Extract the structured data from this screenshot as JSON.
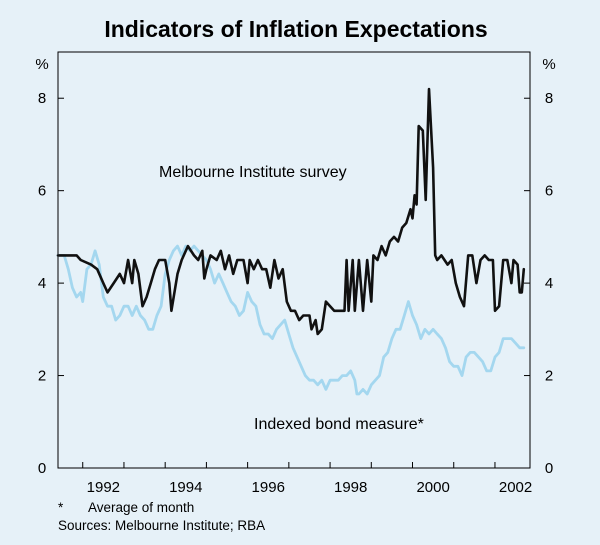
{
  "chart_data": {
    "type": "line",
    "title": "Indicators of Inflation Expectations",
    "ylabel_left": "%",
    "ylabel_right": "%",
    "ylim": [
      0,
      9
    ],
    "yticks": [
      0,
      2,
      4,
      6,
      8
    ],
    "xlim": [
      1991.4,
      2002.85
    ],
    "xticks": [
      1992,
      1994,
      1996,
      1998,
      2000,
      2002
    ],
    "series": [
      {
        "name": "Melbourne Institute survey",
        "color": "#111111",
        "points": [
          [
            1991.4,
            4.6
          ],
          [
            1991.5,
            4.6
          ],
          [
            1991.85,
            4.6
          ],
          [
            1991.95,
            4.5
          ],
          [
            1992.2,
            4.4
          ],
          [
            1992.35,
            4.3
          ],
          [
            1992.5,
            4.0
          ],
          [
            1992.6,
            3.8
          ],
          [
            1992.75,
            4.0
          ],
          [
            1992.9,
            4.2
          ],
          [
            1993.0,
            4.0
          ],
          [
            1993.1,
            4.5
          ],
          [
            1993.2,
            4.0
          ],
          [
            1993.25,
            4.5
          ],
          [
            1993.35,
            4.2
          ],
          [
            1993.45,
            3.5
          ],
          [
            1993.55,
            3.7
          ],
          [
            1993.65,
            4.0
          ],
          [
            1993.75,
            4.3
          ],
          [
            1993.85,
            4.5
          ],
          [
            1994.0,
            4.5
          ],
          [
            1994.1,
            4.0
          ],
          [
            1994.15,
            3.4
          ],
          [
            1994.3,
            4.2
          ],
          [
            1994.4,
            4.5
          ],
          [
            1994.55,
            4.8
          ],
          [
            1994.7,
            4.6
          ],
          [
            1994.8,
            4.5
          ],
          [
            1994.9,
            4.7
          ],
          [
            1994.95,
            4.1
          ],
          [
            1995.0,
            4.3
          ],
          [
            1995.1,
            4.6
          ],
          [
            1995.25,
            4.5
          ],
          [
            1995.35,
            4.7
          ],
          [
            1995.45,
            4.3
          ],
          [
            1995.55,
            4.6
          ],
          [
            1995.65,
            4.2
          ],
          [
            1995.75,
            4.5
          ],
          [
            1995.9,
            4.5
          ],
          [
            1996.0,
            4.0
          ],
          [
            1996.05,
            4.5
          ],
          [
            1996.15,
            4.3
          ],
          [
            1996.25,
            4.5
          ],
          [
            1996.35,
            4.3
          ],
          [
            1996.45,
            4.3
          ],
          [
            1996.55,
            3.9
          ],
          [
            1996.65,
            4.5
          ],
          [
            1996.75,
            4.1
          ],
          [
            1996.85,
            4.3
          ],
          [
            1996.95,
            3.6
          ],
          [
            1997.05,
            3.4
          ],
          [
            1997.15,
            3.4
          ],
          [
            1997.25,
            3.2
          ],
          [
            1997.35,
            3.3
          ],
          [
            1997.5,
            3.3
          ],
          [
            1997.55,
            3.0
          ],
          [
            1997.65,
            3.2
          ],
          [
            1997.7,
            2.9
          ],
          [
            1997.8,
            3.0
          ],
          [
            1997.9,
            3.6
          ],
          [
            1998.0,
            3.5
          ],
          [
            1998.1,
            3.4
          ],
          [
            1998.35,
            3.4
          ],
          [
            1998.4,
            4.5
          ],
          [
            1998.45,
            3.4
          ],
          [
            1998.55,
            4.5
          ],
          [
            1998.6,
            3.4
          ],
          [
            1998.7,
            4.5
          ],
          [
            1998.8,
            3.4
          ],
          [
            1998.9,
            4.5
          ],
          [
            1999.0,
            3.6
          ],
          [
            1999.05,
            4.6
          ],
          [
            1999.15,
            4.5
          ],
          [
            1999.25,
            4.8
          ],
          [
            1999.35,
            4.6
          ],
          [
            1999.45,
            4.9
          ],
          [
            1999.55,
            5.0
          ],
          [
            1999.65,
            4.9
          ],
          [
            1999.75,
            5.2
          ],
          [
            1999.85,
            5.3
          ],
          [
            1999.95,
            5.6
          ],
          [
            2000.0,
            5.4
          ],
          [
            2000.05,
            5.9
          ],
          [
            2000.1,
            5.7
          ],
          [
            2000.15,
            7.4
          ],
          [
            2000.25,
            7.3
          ],
          [
            2000.32,
            5.8
          ],
          [
            2000.4,
            8.2
          ],
          [
            2000.5,
            6.5
          ],
          [
            2000.55,
            4.6
          ],
          [
            2000.6,
            4.5
          ],
          [
            2000.7,
            4.6
          ],
          [
            2000.85,
            4.4
          ],
          [
            2000.95,
            4.5
          ],
          [
            2001.05,
            4.0
          ],
          [
            2001.15,
            3.7
          ],
          [
            2001.25,
            3.5
          ],
          [
            2001.35,
            4.6
          ],
          [
            2001.45,
            4.6
          ],
          [
            2001.55,
            4.0
          ],
          [
            2001.65,
            4.5
          ],
          [
            2001.75,
            4.6
          ],
          [
            2001.85,
            4.5
          ],
          [
            2001.95,
            4.5
          ],
          [
            2002.0,
            3.4
          ],
          [
            2002.1,
            3.5
          ],
          [
            2002.2,
            4.5
          ],
          [
            2002.3,
            4.5
          ],
          [
            2002.4,
            4.0
          ],
          [
            2002.45,
            4.5
          ],
          [
            2002.55,
            4.4
          ],
          [
            2002.6,
            3.8
          ],
          [
            2002.65,
            3.8
          ],
          [
            2002.7,
            4.3
          ]
        ]
      },
      {
        "name": "Indexed bond measure*",
        "color": "#a4d7ef",
        "points": [
          [
            1991.4,
            4.6
          ],
          [
            1991.55,
            4.6
          ],
          [
            1991.65,
            4.3
          ],
          [
            1991.75,
            3.9
          ],
          [
            1991.85,
            3.7
          ],
          [
            1991.95,
            3.8
          ],
          [
            1992.0,
            3.6
          ],
          [
            1992.1,
            4.3
          ],
          [
            1992.2,
            4.4
          ],
          [
            1992.3,
            4.7
          ],
          [
            1992.4,
            4.4
          ],
          [
            1992.5,
            3.7
          ],
          [
            1992.6,
            3.5
          ],
          [
            1992.7,
            3.5
          ],
          [
            1992.8,
            3.2
          ],
          [
            1992.9,
            3.3
          ],
          [
            1993.0,
            3.5
          ],
          [
            1993.1,
            3.5
          ],
          [
            1993.2,
            3.3
          ],
          [
            1993.3,
            3.5
          ],
          [
            1993.4,
            3.3
          ],
          [
            1993.5,
            3.2
          ],
          [
            1993.6,
            3.0
          ],
          [
            1993.7,
            3.0
          ],
          [
            1993.8,
            3.3
          ],
          [
            1993.9,
            3.5
          ],
          [
            1994.0,
            4.2
          ],
          [
            1994.1,
            4.5
          ],
          [
            1994.2,
            4.7
          ],
          [
            1994.3,
            4.8
          ],
          [
            1994.4,
            4.6
          ],
          [
            1994.5,
            4.8
          ],
          [
            1994.6,
            4.7
          ],
          [
            1994.7,
            4.8
          ],
          [
            1994.8,
            4.7
          ],
          [
            1994.9,
            4.6
          ],
          [
            1995.0,
            4.5
          ],
          [
            1995.1,
            4.3
          ],
          [
            1995.2,
            4.0
          ],
          [
            1995.3,
            4.2
          ],
          [
            1995.4,
            4.0
          ],
          [
            1995.5,
            3.8
          ],
          [
            1995.6,
            3.6
          ],
          [
            1995.7,
            3.5
          ],
          [
            1995.8,
            3.3
          ],
          [
            1995.9,
            3.4
          ],
          [
            1996.0,
            3.8
          ],
          [
            1996.1,
            3.6
          ],
          [
            1996.2,
            3.5
          ],
          [
            1996.3,
            3.1
          ],
          [
            1996.4,
            2.9
          ],
          [
            1996.5,
            2.9
          ],
          [
            1996.6,
            2.8
          ],
          [
            1996.7,
            3.0
          ],
          [
            1996.8,
            3.1
          ],
          [
            1996.9,
            3.2
          ],
          [
            1997.0,
            2.9
          ],
          [
            1997.1,
            2.6
          ],
          [
            1997.2,
            2.4
          ],
          [
            1997.3,
            2.2
          ],
          [
            1997.4,
            2.0
          ],
          [
            1997.5,
            1.9
          ],
          [
            1997.6,
            1.9
          ],
          [
            1997.7,
            1.8
          ],
          [
            1997.8,
            1.9
          ],
          [
            1997.9,
            1.7
          ],
          [
            1998.0,
            1.9
          ],
          [
            1998.1,
            1.9
          ],
          [
            1998.2,
            1.9
          ],
          [
            1998.3,
            2.0
          ],
          [
            1998.4,
            2.0
          ],
          [
            1998.5,
            2.1
          ],
          [
            1998.6,
            1.9
          ],
          [
            1998.65,
            1.6
          ],
          [
            1998.7,
            1.6
          ],
          [
            1998.8,
            1.7
          ],
          [
            1998.9,
            1.6
          ],
          [
            1999.0,
            1.8
          ],
          [
            1999.1,
            1.9
          ],
          [
            1999.2,
            2.0
          ],
          [
            1999.3,
            2.4
          ],
          [
            1999.4,
            2.5
          ],
          [
            1999.5,
            2.8
          ],
          [
            1999.6,
            3.0
          ],
          [
            1999.7,
            3.0
          ],
          [
            1999.8,
            3.3
          ],
          [
            1999.9,
            3.6
          ],
          [
            2000.0,
            3.3
          ],
          [
            2000.1,
            3.1
          ],
          [
            2000.2,
            2.8
          ],
          [
            2000.3,
            3.0
          ],
          [
            2000.4,
            2.9
          ],
          [
            2000.5,
            3.0
          ],
          [
            2000.6,
            2.9
          ],
          [
            2000.7,
            2.8
          ],
          [
            2000.8,
            2.6
          ],
          [
            2000.9,
            2.3
          ],
          [
            2001.0,
            2.2
          ],
          [
            2001.1,
            2.2
          ],
          [
            2001.2,
            2.0
          ],
          [
            2001.3,
            2.4
          ],
          [
            2001.4,
            2.5
          ],
          [
            2001.5,
            2.5
          ],
          [
            2001.6,
            2.4
          ],
          [
            2001.7,
            2.3
          ],
          [
            2001.8,
            2.1
          ],
          [
            2001.9,
            2.1
          ],
          [
            2002.0,
            2.4
          ],
          [
            2002.1,
            2.5
          ],
          [
            2002.2,
            2.8
          ],
          [
            2002.3,
            2.8
          ],
          [
            2002.4,
            2.8
          ],
          [
            2002.5,
            2.7
          ],
          [
            2002.6,
            2.6
          ],
          [
            2002.7,
            2.6
          ]
        ]
      }
    ],
    "annotations": [
      "Melbourne Institute survey",
      "Indexed bond measure*"
    ]
  },
  "footnotes": {
    "asterisk": "*",
    "note": "Average of month",
    "sources": "Sources: Melbourne Institute; RBA"
  }
}
